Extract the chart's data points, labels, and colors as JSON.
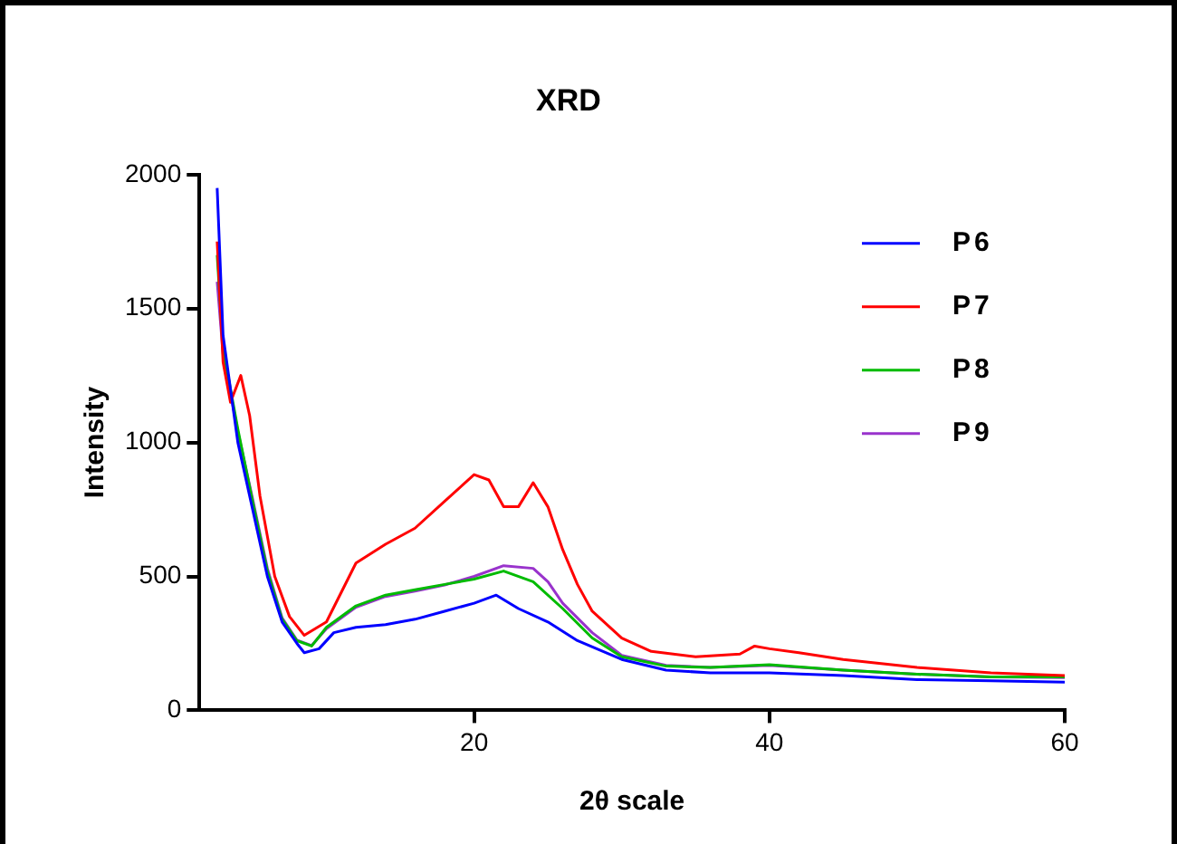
{
  "chart_data": {
    "type": "line",
    "title": "XRD",
    "xlabel": "2θ scale",
    "ylabel": "Intensity",
    "xlim": [
      1.4,
      60
    ],
    "xticks": [
      20,
      40,
      60
    ],
    "ylim": [
      0,
      2000
    ],
    "yticks": [
      0,
      500,
      1000,
      1500,
      2000
    ],
    "grid": false,
    "legend": "top right",
    "marker": "none",
    "line_style": "solid",
    "series": [
      {
        "name": "P6",
        "color": "#0000ff",
        "x": [
          2.6,
          3,
          4,
          5,
          6,
          7,
          8,
          8.5,
          9.5,
          10.5,
          12,
          14,
          16,
          18,
          20,
          21.5,
          23,
          25,
          27,
          30,
          33,
          36,
          40,
          45,
          50,
          55,
          60
        ],
        "values": [
          1950,
          1400,
          1000,
          750,
          500,
          330,
          250,
          215,
          230,
          290,
          310,
          320,
          340,
          370,
          400,
          430,
          380,
          330,
          260,
          190,
          150,
          140,
          140,
          130,
          115,
          110,
          105
        ]
      },
      {
        "name": "P7",
        "color": "#ff0000",
        "x": [
          2.6,
          3,
          3.5,
          4.2,
          4.8,
          5.5,
          6.5,
          7.5,
          8.5,
          10,
          12,
          14,
          16,
          18,
          20,
          21,
          22,
          23,
          24,
          25,
          26,
          27,
          28,
          30,
          32,
          35,
          38,
          39,
          40,
          42,
          45,
          50,
          55,
          60
        ],
        "values": [
          1750,
          1300,
          1150,
          1250,
          1100,
          800,
          500,
          350,
          280,
          330,
          550,
          620,
          680,
          780,
          880,
          860,
          760,
          760,
          850,
          760,
          600,
          470,
          370,
          270,
          220,
          200,
          210,
          240,
          230,
          215,
          190,
          160,
          140,
          130
        ]
      },
      {
        "name": "P8",
        "color": "#00bb00",
        "x": [
          2.6,
          3,
          4,
          5,
          6,
          7,
          8,
          9,
          10,
          12,
          14,
          16,
          18,
          20,
          22,
          24,
          26,
          28,
          30,
          33,
          36,
          40,
          45,
          50,
          55,
          60
        ],
        "values": [
          1700,
          1350,
          1050,
          780,
          520,
          340,
          260,
          240,
          310,
          390,
          430,
          450,
          470,
          490,
          520,
          480,
          380,
          270,
          200,
          165,
          160,
          170,
          150,
          135,
          125,
          125
        ]
      },
      {
        "name": "P9",
        "color": "#9933cc",
        "x": [
          2.6,
          3,
          4,
          5,
          6,
          7,
          8,
          9,
          10,
          12,
          14,
          16,
          18,
          20,
          22,
          24,
          25,
          26,
          28,
          30,
          33,
          36,
          40,
          45,
          50,
          55,
          60
        ],
        "values": [
          1600,
          1330,
          1040,
          790,
          530,
          345,
          262,
          242,
          305,
          385,
          425,
          445,
          468,
          500,
          540,
          530,
          480,
          400,
          290,
          205,
          168,
          160,
          168,
          150,
          135,
          125,
          122
        ]
      }
    ]
  }
}
